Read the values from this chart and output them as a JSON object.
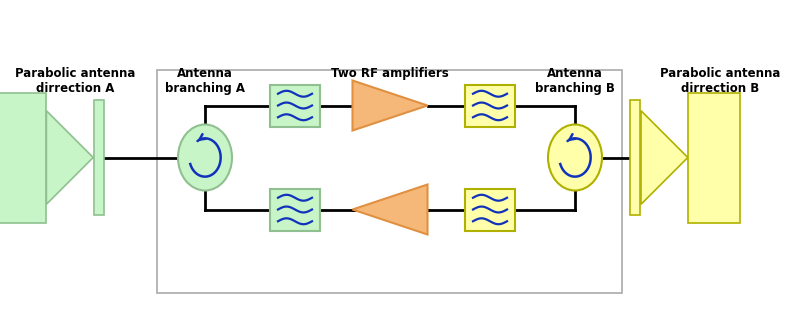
{
  "bg_color": "#ffffff",
  "green_fill": "#c8f5c8",
  "green_edge": "#90c090",
  "yellow_fill": "#ffffaa",
  "yellow_edge": "#b0b000",
  "orange_fill": "#f5b878",
  "orange_edge": "#e09040",
  "wave_color": "#1133bb",
  "line_color": "#000000",
  "text_color": "#000000",
  "label_antenna_A": "Parabolic antenna\ndirrection A",
  "label_branching_A": "Antenna\nbranching A",
  "label_amplifiers": "Two RF amplifiers",
  "label_branching_B": "Antenna\nbranching B",
  "label_antenna_B": "Parabolic antenna\ndirrection B",
  "font_size": 8.5,
  "font_weight": "bold"
}
